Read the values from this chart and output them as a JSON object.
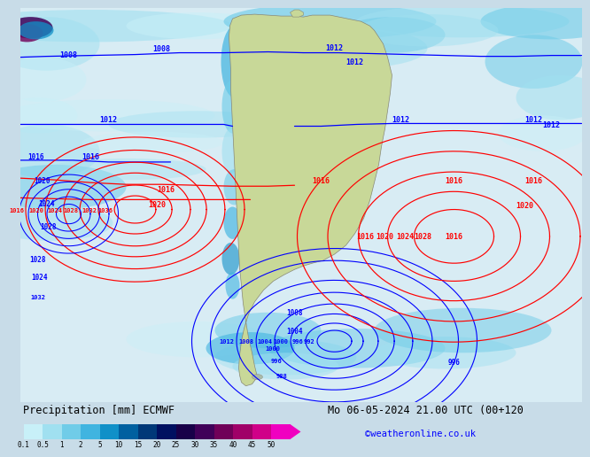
{
  "title_left": "Precipitation [mm] ECMWF",
  "title_right": "Mo 06-05-2024 21.00 UTC (00+120",
  "credit": "©weatheronline.co.uk",
  "colorbar_levels": [
    0.1,
    0.5,
    1,
    2,
    5,
    10,
    15,
    20,
    25,
    30,
    35,
    40,
    45,
    50
  ],
  "colorbar_colors": [
    "#c8f0f8",
    "#a0e0f0",
    "#70cce8",
    "#40b4e0",
    "#1090c8",
    "#0060a0",
    "#003878",
    "#001060",
    "#180048",
    "#400058",
    "#700058",
    "#a00068",
    "#d00088",
    "#f000c0"
  ],
  "bg_ocean_color": "#d8ecf4",
  "bg_land_color": "#c8d8a0",
  "font_size_label": 9,
  "font_size_credit": 8,
  "isobar_lw": 0.9
}
